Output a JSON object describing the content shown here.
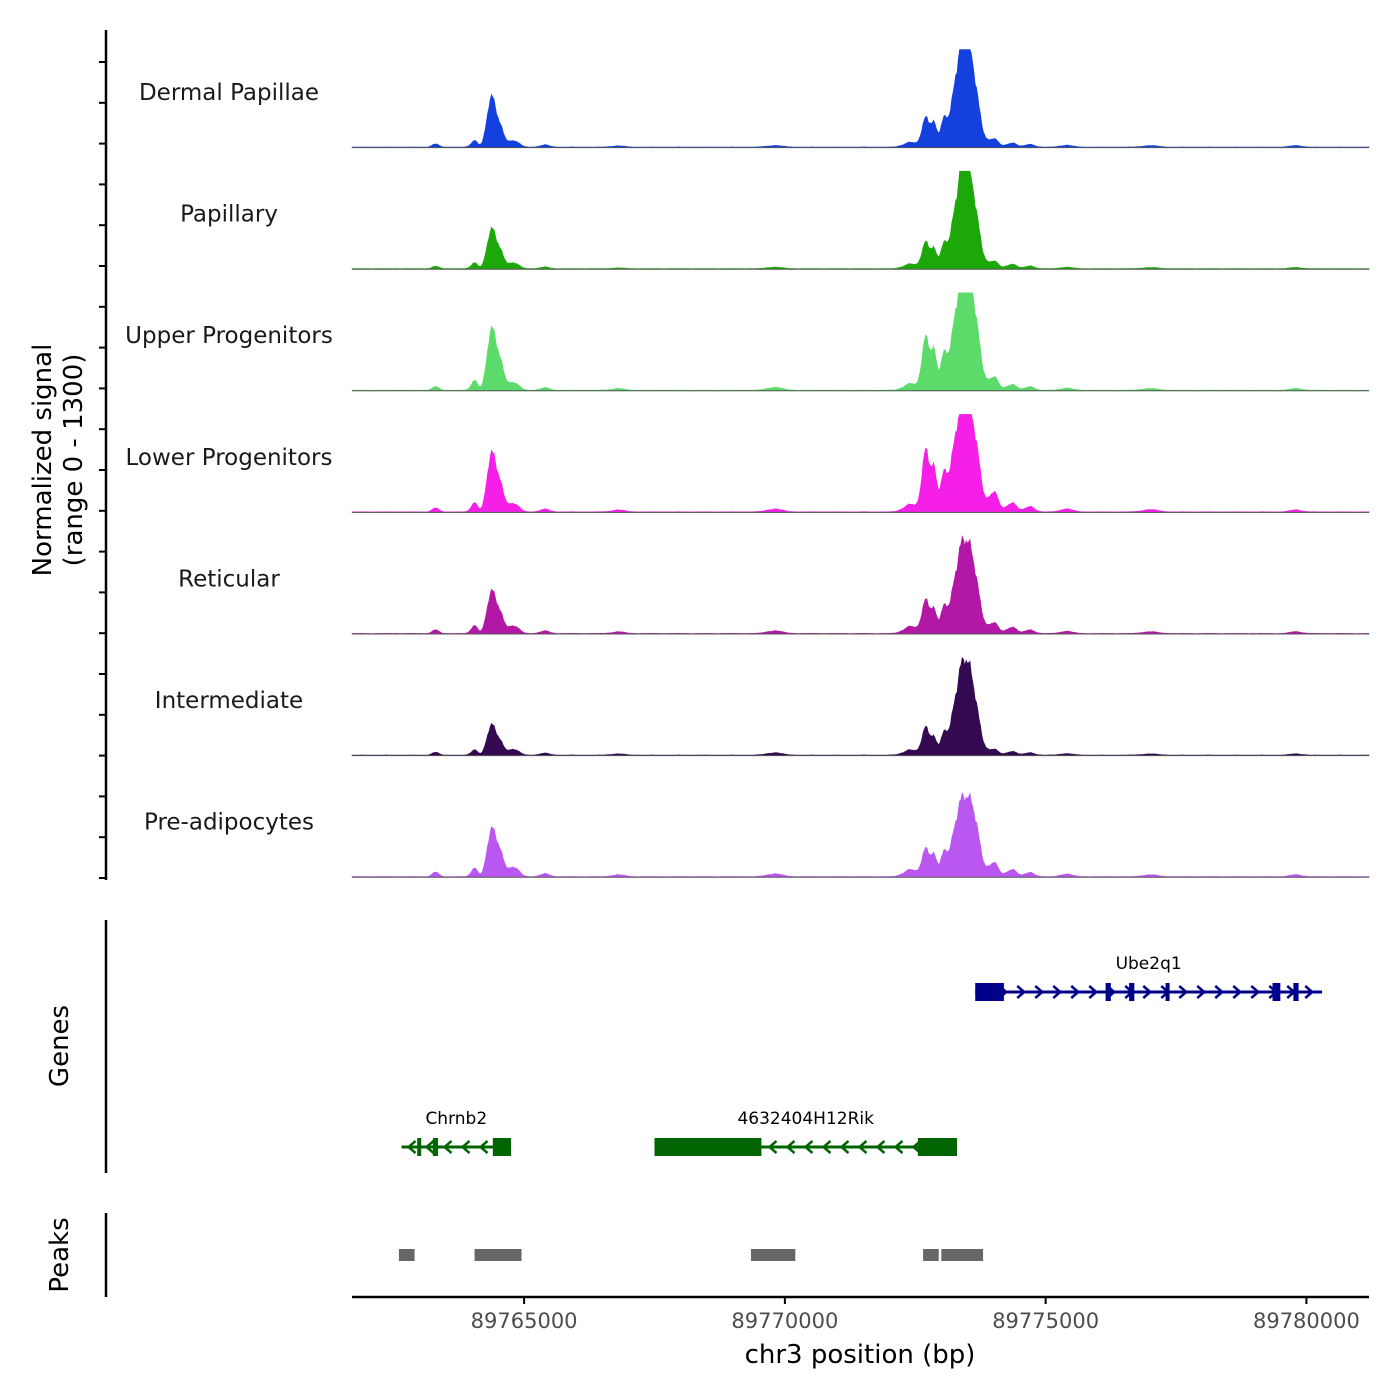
{
  "chart_data": {
    "type": "area",
    "title": "",
    "chromosome": "chr3",
    "xlabel": "chr3 position (bp)",
    "ylabel": "Normalized signal",
    "ylabel_sub": "(range 0 - 1300)",
    "yrange": [
      0,
      1300
    ],
    "xlim": [
      89761700,
      89781200
    ],
    "x_ticks": [
      89765000,
      89770000,
      89775000,
      89780000
    ],
    "x_tick_labels": [
      "89765000",
      "89770000",
      "89775000",
      "89780000"
    ],
    "grid": false,
    "legend": "none",
    "genes_label": "Genes",
    "peaks_label": "Peaks",
    "peak_shapes": [
      {
        "pos": 89763300,
        "h": 0.03,
        "w": 60
      },
      {
        "pos": 89764050,
        "h": 0.07,
        "w": 60
      },
      {
        "pos": 89764360,
        "h": 0.38,
        "w": 80
      },
      {
        "pos": 89764520,
        "h": 0.25,
        "w": 90
      },
      {
        "pos": 89764800,
        "h": 0.06,
        "w": 100
      },
      {
        "pos": 89765400,
        "h": 0.02,
        "w": 90
      },
      {
        "pos": 89766800,
        "h": 0.015,
        "w": 120
      },
      {
        "pos": 89769800,
        "h": 0.02,
        "w": 140
      },
      {
        "pos": 89772400,
        "h": 0.05,
        "w": 120
      },
      {
        "pos": 89772700,
        "h": 0.28,
        "w": 70
      },
      {
        "pos": 89772850,
        "h": 0.22,
        "w": 60
      },
      {
        "pos": 89773050,
        "h": 0.2,
        "w": 70
      },
      {
        "pos": 89773300,
        "h": 0.55,
        "w": 110
      },
      {
        "pos": 89773450,
        "h": 0.85,
        "w": 120
      },
      {
        "pos": 89773650,
        "h": 0.45,
        "w": 110
      },
      {
        "pos": 89774000,
        "h": 0.08,
        "w": 90
      },
      {
        "pos": 89774350,
        "h": 0.05,
        "w": 90
      },
      {
        "pos": 89774700,
        "h": 0.03,
        "w": 90
      },
      {
        "pos": 89775400,
        "h": 0.02,
        "w": 110
      },
      {
        "pos": 89777000,
        "h": 0.015,
        "w": 140
      },
      {
        "pos": 89779800,
        "h": 0.015,
        "w": 110
      }
    ],
    "series": [
      {
        "name": "Dermal Papillae",
        "color": "#1441DD",
        "scales": [
          1.0,
          1.0,
          1.1,
          0.9,
          1.0,
          1.0,
          0.8,
          0.8,
          1.0,
          1.05,
          1.1,
          1.15,
          0.95,
          1.0,
          1.0,
          1.0,
          0.9,
          0.9,
          1.0,
          1.0,
          1.0
        ]
      },
      {
        "name": "Papillary",
        "color": "#1DA80A",
        "scales": [
          0.8,
          0.9,
          0.85,
          0.8,
          0.9,
          0.8,
          0.5,
          0.8,
          1.0,
          0.95,
          0.9,
          1.0,
          0.9,
          0.95,
          1.0,
          0.9,
          1.0,
          0.9,
          0.8,
          0.8,
          0.8
        ]
      },
      {
        "name": "Upper Progenitors",
        "color": "#5CDB6A",
        "scales": [
          1.2,
          1.5,
          1.3,
          1.3,
          1.2,
          1.2,
          1.2,
          1.5,
          1.4,
          1.9,
          1.8,
          1.5,
          1.15,
          1.0,
          1.3,
          1.6,
          1.3,
          1.2,
          1.2,
          1.2,
          1.2
        ]
      },
      {
        "name": "Lower Progenitors",
        "color": "#F51FE8",
        "scales": [
          1.3,
          1.4,
          1.25,
          1.25,
          1.3,
          1.3,
          1.3,
          1.5,
          1.6,
          2.2,
          2.0,
          1.6,
          1.2,
          0.85,
          1.3,
          2.4,
          2.0,
          1.8,
          1.6,
          1.6,
          1.3
        ]
      },
      {
        "name": "Reticular",
        "color": "#B317A6",
        "scales": [
          1.2,
          1.2,
          0.9,
          0.9,
          1.2,
          1.2,
          1.1,
          1.4,
          1.5,
          1.2,
          1.1,
          1.1,
          0.85,
          0.8,
          1.0,
          1.3,
          1.4,
          1.2,
          1.2,
          1.2,
          1.2
        ]
      },
      {
        "name": "Intermediate",
        "color": "#330A52",
        "scales": [
          0.9,
          0.8,
          0.65,
          0.6,
          0.9,
          0.9,
          0.8,
          1.2,
          1.1,
          1.0,
          0.8,
          0.9,
          0.8,
          0.85,
          0.9,
          0.7,
          0.8,
          0.8,
          0.8,
          0.8,
          0.8
        ]
      },
      {
        "name": "Pre-adipocytes",
        "color": "#BA57F0",
        "scales": [
          1.5,
          1.3,
          1.0,
          1.1,
          1.5,
          1.4,
          1.3,
          1.5,
          1.5,
          1.0,
          1.0,
          1.0,
          0.8,
          0.65,
          1.0,
          1.7,
          1.6,
          1.4,
          1.4,
          1.3,
          1.3
        ]
      }
    ],
    "genes": [
      {
        "name": "Ube2q1",
        "strand": "+",
        "color": "#00008B",
        "start": 89773650,
        "end": 89780300,
        "exons": [
          [
            89773650,
            89774200
          ],
          [
            89776150,
            89776250
          ],
          [
            89776600,
            89776700
          ],
          [
            89777300,
            89777350
          ],
          [
            89779350,
            89779500
          ],
          [
            89779750,
            89779850
          ]
        ],
        "row": 1
      },
      {
        "name": "Chrnb2",
        "strand": "-",
        "color": "#006400",
        "start": 89762650,
        "end": 89764750,
        "exons": [
          [
            89762950,
            89763000
          ],
          [
            89763250,
            89763350
          ],
          [
            89764400,
            89764750
          ]
        ],
        "row": 2
      },
      {
        "name": "4632404H12Rik",
        "strand": "-",
        "color": "#006400",
        "start": 89767500,
        "end": 89773300,
        "exons": [
          [
            89767500,
            89769550
          ],
          [
            89772550,
            89773300
          ]
        ],
        "row": 2
      }
    ],
    "peaks": [
      [
        89762600,
        89762900
      ],
      [
        89764050,
        89764950
      ],
      [
        89769350,
        89770200
      ],
      [
        89772650,
        89772950
      ],
      [
        89773000,
        89773800
      ]
    ]
  }
}
